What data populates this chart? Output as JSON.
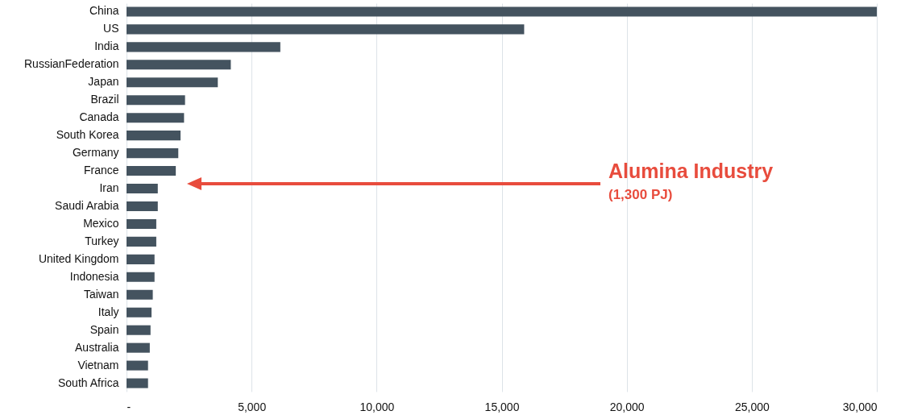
{
  "chart_data": {
    "type": "bar",
    "orientation": "horizontal",
    "categories": [
      "China",
      "US",
      "India",
      "RussianFederation",
      "Japan",
      "Brazil",
      "Canada",
      "South Korea",
      "Germany",
      "France",
      "Iran",
      "Saudi Arabia",
      "Mexico",
      "Turkey",
      "United Kingdom",
      "Indonesia",
      "Taiwan",
      "Italy",
      "Spain",
      "Australia",
      "Vietnam",
      "South Africa"
    ],
    "values": [
      30000,
      15900,
      6150,
      4170,
      3650,
      2340,
      2300,
      2160,
      2070,
      1970,
      1250,
      1250,
      1190,
      1190,
      1120,
      1120,
      1050,
      1000,
      960,
      930,
      860,
      860
    ],
    "color": "#44535f",
    "xlim": [
      0,
      30000
    ],
    "xticks": [
      {
        "value": 0,
        "label": "-"
      },
      {
        "value": 5000,
        "label": "5,000"
      },
      {
        "value": 10000,
        "label": "10,000"
      },
      {
        "value": 15000,
        "label": "15,000"
      },
      {
        "value": 20000,
        "label": "20,000"
      },
      {
        "value": 25000,
        "label": "25,000"
      },
      {
        "value": 30000,
        "label": "30,000"
      }
    ],
    "grid": "x",
    "annotations": [
      "Alumina Industry",
      "(1,300 PJ)"
    ]
  }
}
